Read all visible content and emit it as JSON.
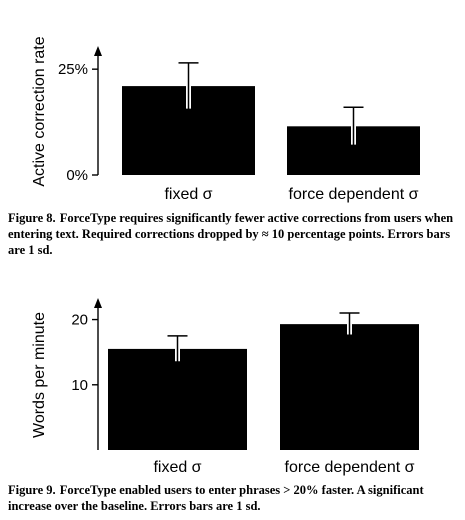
{
  "figure8": {
    "lead": "Figure 8.",
    "caption": "ForceType requires significantly fewer active corrections from users when entering text. Required corrections dropped by ≈ 10 percentage points. Errors bars are 1 sd."
  },
  "figure9": {
    "lead": "Figure 9.",
    "caption": "ForceType enabled users to enter phrases > 20% faster. A significant increase over the baseline. Errors bars are 1 sd."
  },
  "chart_data": [
    {
      "type": "bar",
      "categories": [
        "fixed σ",
        "force dependent σ"
      ],
      "values": [
        21,
        11.5
      ],
      "error": [
        5.5,
        4.5
      ],
      "ylabel": "Active correction rate",
      "ylim": [
        0,
        30
      ],
      "yticks": [
        0,
        25
      ],
      "ytick_labels": [
        "0%",
        "25%"
      ],
      "bar_color": "#000000",
      "grid": false
    },
    {
      "type": "bar",
      "categories": [
        "fixed σ",
        "force dependent σ"
      ],
      "values": [
        15.5,
        19.3
      ],
      "error": [
        2.0,
        1.7
      ],
      "ylabel": "Words per minute",
      "ylim": [
        0,
        23
      ],
      "yticks": [
        10,
        20
      ],
      "ytick_labels": [
        "10",
        "20"
      ],
      "bar_color": "#000000",
      "grid": false
    }
  ]
}
